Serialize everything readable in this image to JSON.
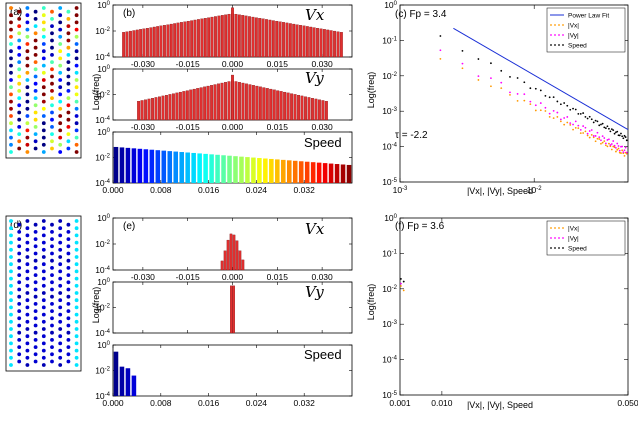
{
  "panels": {
    "a": {
      "label": "(a)"
    },
    "d": {
      "label": "(d)"
    },
    "b": {
      "label": "(b)",
      "ylabel": "Log(freq)",
      "labels": [
        "Vx",
        "Vy",
        "Speed"
      ]
    },
    "e": {
      "label": "(e)",
      "ylabel": "Log(freq)",
      "labels": [
        "Vx",
        "Vy",
        "Speed"
      ]
    },
    "c": {
      "label": "(c) Fp = 3.4",
      "ylabel": "Log(freq)",
      "xlabel": "|Vx|, |Vy|, Speed",
      "annotation": "τ = -2.2"
    },
    "f": {
      "label": "(f) Fp = 3.6",
      "ylabel": "Log(freq)",
      "xlabel": "|Vx|, |Vy|, Speed"
    }
  },
  "chart_data": [
    {
      "id": "b_vx",
      "type": "bar",
      "xlim": [
        -0.04,
        0.04
      ],
      "ylim": [
        0.0001,
        1
      ],
      "yscale": "log",
      "x_ticks": [
        "-0.030",
        "-0.015",
        "0.000",
        "0.015",
        "0.030"
      ],
      "y_ticks": [
        "10^0",
        "10^-2",
        "10^-4"
      ],
      "color": "#e03030",
      "profile": {
        "peak": 0.22,
        "decay": 0.011,
        "floor": 0.0003,
        "xmax": 0.037,
        "bins": 65
      }
    },
    {
      "id": "b_vy",
      "type": "bar",
      "xlim": [
        -0.04,
        0.04
      ],
      "ylim": [
        0.0001,
        1
      ],
      "yscale": "log",
      "x_ticks": [
        "-0.030",
        "-0.015",
        "0.000",
        "0.015",
        "0.030"
      ],
      "y_ticks": [
        "10^0",
        "10^-2",
        "10^-4"
      ],
      "color": "#e03030",
      "profile": {
        "peak": 0.12,
        "decay": 0.0085,
        "floor": 0.0002,
        "xmax": 0.032,
        "bins": 55
      }
    },
    {
      "id": "b_speed",
      "type": "bar",
      "xlim": [
        0,
        0.04
      ],
      "ylim": [
        0.0001,
        1
      ],
      "yscale": "log",
      "x_ticks": [
        "0.000",
        "0.008",
        "0.016",
        "0.024",
        "0.032"
      ],
      "y_ticks": [
        "10^0",
        "10^-2",
        "10^-4"
      ],
      "colormap": "jet",
      "profile": {
        "peak": 0.07,
        "decay": 0.012,
        "floor": 0.0003,
        "xmax": 0.04,
        "bins": 40
      }
    },
    {
      "id": "e_vx",
      "type": "bar",
      "xlim": [
        -0.04,
        0.04
      ],
      "ylim": [
        0.0001,
        1
      ],
      "yscale": "log",
      "x_ticks": [
        "-0.030",
        "-0.015",
        "0.000",
        "0.015",
        "0.030"
      ],
      "y_ticks": [
        "10^0",
        "10^-2",
        "10^-4"
      ],
      "color": "#e03030",
      "x": [
        -0.0035,
        -0.0025,
        -0.0015,
        -0.0005,
        0.0005,
        0.0015,
        0.0025,
        0.0035
      ],
      "y": [
        0.0005,
        0.003,
        0.02,
        0.06,
        0.05,
        0.018,
        0.003,
        0.0006
      ]
    },
    {
      "id": "e_vy",
      "type": "bar",
      "xlim": [
        -0.04,
        0.04
      ],
      "ylim": [
        0.0001,
        1
      ],
      "yscale": "log",
      "x_ticks": [
        "-0.030",
        "-0.015",
        "0.000",
        "0.015",
        "0.030"
      ],
      "y_ticks": [
        "10^0",
        "10^-2",
        "10^-4"
      ],
      "color": "#e03030",
      "x": [
        -0.0004,
        0.0004
      ],
      "y": [
        0.5,
        0.5
      ]
    },
    {
      "id": "e_speed",
      "type": "bar",
      "xlim": [
        0,
        0.04
      ],
      "ylim": [
        0.0001,
        1
      ],
      "yscale": "log",
      "x_ticks": [
        "0.000",
        "0.008",
        "0.016",
        "0.024",
        "0.032"
      ],
      "y_ticks": [
        "10^0",
        "10^-2",
        "10^-4"
      ],
      "colormap": "jet",
      "x": [
        0.0005,
        0.0015,
        0.0025,
        0.0035
      ],
      "y": [
        0.3,
        0.02,
        0.015,
        0.004
      ]
    },
    {
      "id": "c",
      "type": "scatter",
      "xscale": "log",
      "yscale": "log",
      "xlim": [
        0.001,
        0.05
      ],
      "ylim": [
        1e-05,
        1
      ],
      "x_ticks": [
        "10^-3",
        "10^-2"
      ],
      "y_ticks": [
        "10^0",
        "10^-1",
        "10^-2",
        "10^-3",
        "10^-4",
        "10^-5"
      ],
      "legend": {
        "position": "top-right",
        "entries": [
          "Power Law Fit",
          "|Vx|",
          "|Vy|",
          "Speed"
        ]
      },
      "fit": {
        "tau": -2.2,
        "x_range": [
          0.0025,
          0.05
        ],
        "y_at_xmin": 0.22
      },
      "series": [
        {
          "name": "|Vx|",
          "color": "#ff9900",
          "a": 0.03,
          "tau": -1.95,
          "noise": 0.15
        },
        {
          "name": "|Vy|",
          "color": "#ff00ff",
          "a": 0.045,
          "tau": -2.0,
          "noise": 0.2
        },
        {
          "name": "Speed",
          "color": "#000000",
          "a": 0.12,
          "tau": -2.05,
          "noise": 0.12
        }
      ]
    },
    {
      "id": "f",
      "type": "scatter",
      "xscale": "linear",
      "yscale": "log",
      "xlim": [
        0.001,
        0.05
      ],
      "ylim": [
        1e-05,
        1
      ],
      "x_ticks": [
        "0.001",
        "0.010",
        "0.050"
      ],
      "y_ticks": [
        "10^0",
        "10^-1",
        "10^-2",
        "10^-3",
        "10^-4",
        "10^-5"
      ],
      "legend": {
        "position": "top-right",
        "entries": [
          "|Vx|",
          "|Vy|",
          "Speed"
        ]
      },
      "series": [
        {
          "name": "|Vx|",
          "color": "#ff9900",
          "x": [
            0.0012,
            0.0018
          ],
          "y": [
            0.012,
            0.009
          ]
        },
        {
          "name": "|Vy|",
          "color": "#ff00ff",
          "x": [
            0.0012
          ],
          "y": [
            0.014
          ]
        },
        {
          "name": "Speed",
          "color": "#000000",
          "x": [
            0.0012,
            0.0018
          ],
          "y": [
            0.019,
            0.016
          ]
        }
      ]
    }
  ]
}
